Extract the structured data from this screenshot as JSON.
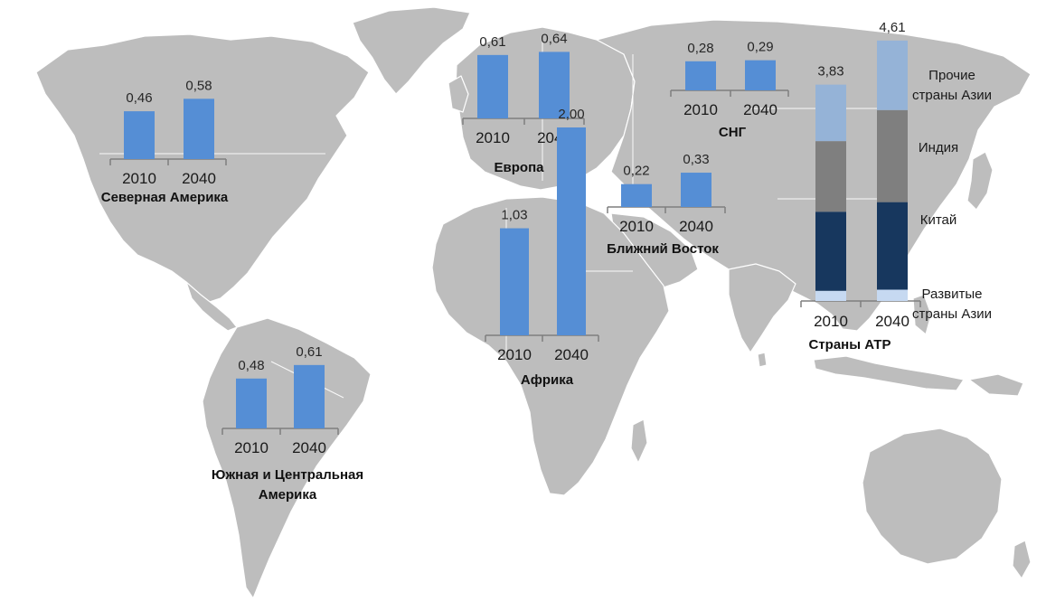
{
  "colors": {
    "land": "#bdbdbd",
    "border": "#ffffff",
    "bar": "#558ed5",
    "segments": {
      "Прочие страны Азии": "#95b3d7",
      "Индия": "#7f7f7f",
      "Китай": "#17375e",
      "Развитые страны Азии": "#c6d9f1"
    }
  },
  "chart_data": [
    {
      "type": "bar",
      "title": "Северная Америка",
      "categories": [
        "2010",
        "2040"
      ],
      "values": [
        0.46,
        0.58
      ],
      "value_labels": [
        "0,46",
        "0,58"
      ]
    },
    {
      "type": "bar",
      "title": "Европа",
      "categories": [
        "2010",
        "2040"
      ],
      "values": [
        0.61,
        0.64
      ],
      "value_labels": [
        "0,61",
        "0,64"
      ]
    },
    {
      "type": "bar",
      "title": "СНГ",
      "categories": [
        "2010",
        "2040"
      ],
      "values": [
        0.28,
        0.29
      ],
      "value_labels": [
        "0,28",
        "0,29"
      ]
    },
    {
      "type": "bar",
      "title": "Ближний Восток",
      "categories": [
        "2010",
        "2040"
      ],
      "values": [
        0.22,
        0.33
      ],
      "value_labels": [
        "0,22",
        "0,33"
      ]
    },
    {
      "type": "bar",
      "title": "Африка",
      "categories": [
        "2010",
        "2040"
      ],
      "values": [
        1.03,
        2.0
      ],
      "value_labels": [
        "1,03",
        "2,00"
      ]
    },
    {
      "type": "bar",
      "title": "Южная и Центральная Америка",
      "title_lines": [
        "Южная и Центральная",
        "Америка"
      ],
      "categories": [
        "2010",
        "2040"
      ],
      "values": [
        0.48,
        0.61
      ],
      "value_labels": [
        "0,48",
        "0,61"
      ]
    },
    {
      "type": "stacked_bar",
      "title": "Страны АТР",
      "categories": [
        "2010",
        "2040"
      ],
      "totals": [
        3.83,
        4.61
      ],
      "total_labels": [
        "3,83",
        "4,61"
      ],
      "series": [
        {
          "name": "Развитые страны Азии",
          "label_lines": [
            "Развитые",
            "страны Азии"
          ],
          "values": [
            0.18,
            0.2
          ]
        },
        {
          "name": "Китай",
          "label_lines": [
            "Китай"
          ],
          "values": [
            1.4,
            1.55
          ]
        },
        {
          "name": "Индия",
          "label_lines": [
            "Индия"
          ],
          "values": [
            1.25,
            1.63
          ]
        },
        {
          "name": "Прочие страны Азии",
          "label_lines": [
            "Прочие",
            "страны Азии"
          ],
          "values": [
            1.0,
            1.23
          ]
        }
      ]
    }
  ]
}
